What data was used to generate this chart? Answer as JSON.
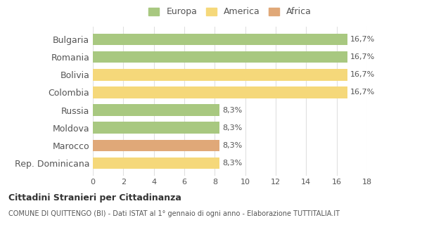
{
  "categories": [
    "Bulgaria",
    "Romania",
    "Bolivia",
    "Colombia",
    "Russia",
    "Moldova",
    "Marocco",
    "Rep. Dominicana"
  ],
  "values": [
    16.7,
    16.7,
    16.7,
    16.7,
    8.3,
    8.3,
    8.3,
    8.3
  ],
  "bar_colors": [
    "#a8c880",
    "#a8c880",
    "#f5d87a",
    "#f5d87a",
    "#a8c880",
    "#a8c880",
    "#e0a878",
    "#f5d87a"
  ],
  "labels": [
    "16,7%",
    "16,7%",
    "16,7%",
    "16,7%",
    "8,3%",
    "8,3%",
    "8,3%",
    "8,3%"
  ],
  "xlim": [
    0,
    18
  ],
  "xticks": [
    0,
    2,
    4,
    6,
    8,
    10,
    12,
    14,
    16,
    18
  ],
  "legend_labels": [
    "Europa",
    "America",
    "Africa"
  ],
  "legend_colors": [
    "#a8c880",
    "#f5d87a",
    "#e0a878"
  ],
  "title": "Cittadini Stranieri per Cittadinanza",
  "subtitle": "COMUNE DI QUITTENGO (BI) - Dati ISTAT al 1° gennaio di ogni anno - Elaborazione TUTTITALIA.IT",
  "background_color": "#ffffff",
  "grid_color": "#e0e0e0"
}
